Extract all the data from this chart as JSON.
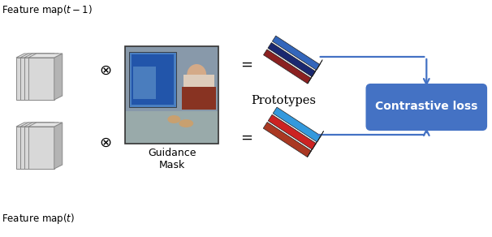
{
  "bg_color": "#ffffff",
  "fm_top_label": "Feature map$(t-1)$",
  "fm_bot_label": "Feature map$(t)$",
  "otimes_symbol": "$\\otimes$",
  "equals_symbol": "=",
  "guidance_mask_label": "Guidance\nMask",
  "prototypes_label": "Prototypes",
  "contrastive_box_color": "#4472c4",
  "contrastive_text": "Contrastive loss",
  "contrastive_text_color": "#ffffff",
  "arrow_color": "#4472c4",
  "fm_face_color": "#d8d8d8",
  "fm_side_color": "#b8b8b8",
  "fm_top_color": "#e8e8e8",
  "fm_edge_color": "#888888",
  "proto1_colors": [
    "#8b2020",
    "#1a2a6b",
    "#2255aa"
  ],
  "proto2_colors": [
    "#8b4030",
    "#cc2222",
    "#3399dd"
  ]
}
